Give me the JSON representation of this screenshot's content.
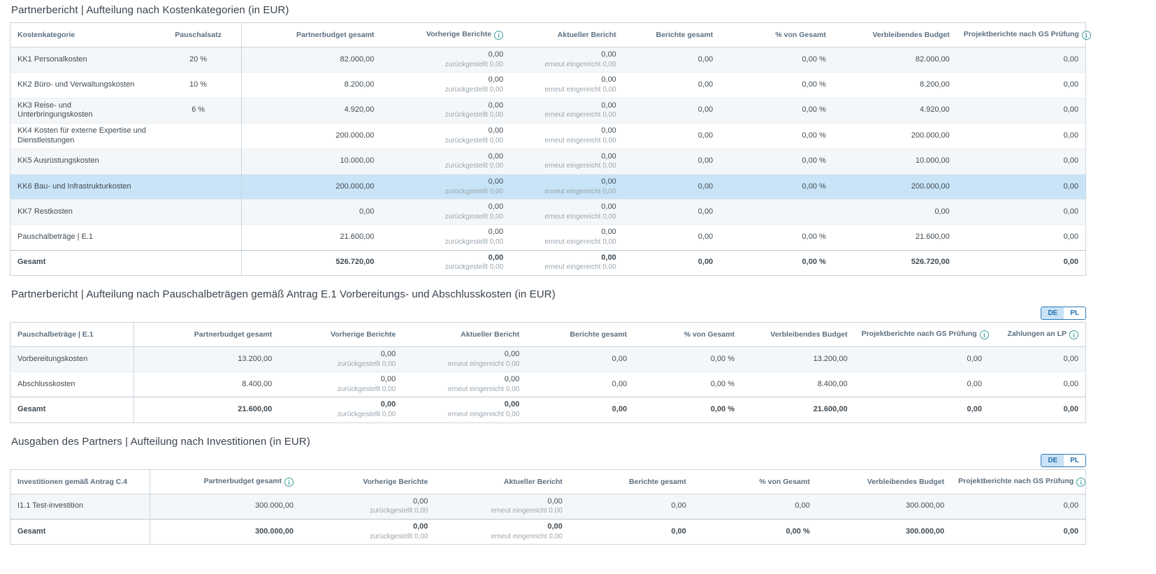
{
  "colors": {
    "accent_blue": "#2a79b8",
    "toggle_active_bg": "#c9e2f7",
    "highlight_row": "#c8e4f6",
    "stripe_row": "#f4f7fa",
    "info_icon_teal": "#3d9d9d",
    "header_text": "#5b6f80",
    "title_text": "#39434e"
  },
  "tables": [
    {
      "title": "Partnerbericht | Aufteilung nach Kostenkategorien (in EUR)",
      "toggle": null,
      "columns": [
        {
          "label": "Kostenkategorie",
          "align": "left",
          "info": false,
          "sep": false,
          "width": "13.5%"
        },
        {
          "label": "Pauschalsatz",
          "align": "center",
          "info": false,
          "sep": false,
          "width": "8%"
        },
        {
          "label": "Partnerbudget gesamt",
          "align": "right",
          "info": false,
          "sep": true,
          "width": "13%"
        },
        {
          "label": "Vorherige Berichte",
          "align": "right",
          "info": true,
          "sep": false,
          "width": "12%"
        },
        {
          "label": "Aktueller Bericht",
          "align": "right",
          "info": false,
          "sep": false,
          "width": "10.5%"
        },
        {
          "label": "Berichte gesamt",
          "align": "right",
          "info": false,
          "sep": false,
          "width": "9%"
        },
        {
          "label": "% von Gesamt",
          "align": "right",
          "info": false,
          "sep": false,
          "width": "10.5%"
        },
        {
          "label": "Verbleibendes Budget",
          "align": "right",
          "info": false,
          "sep": false,
          "width": "11.5%"
        },
        {
          "label": "Projektberichte nach GS Prüfung",
          "align": "right",
          "info": true,
          "sep": false,
          "width": "12%"
        }
      ],
      "rows": [
        {
          "highlight": false,
          "total": false,
          "cells": [
            "KK1 Personalkosten",
            "20 %",
            "82.000,00",
            {
              "main": "0,00",
              "sub": "zurückgestellt 0,00"
            },
            {
              "main": "0,00",
              "sub": "erneut eingereicht 0,00"
            },
            "0,00",
            "0,00 %",
            "82.000,00",
            "0,00"
          ]
        },
        {
          "highlight": false,
          "total": false,
          "cells": [
            "KK2 Büro- und Verwaltungskosten",
            "10 %",
            "8.200,00",
            {
              "main": "0,00",
              "sub": "zurückgestellt 0,00"
            },
            {
              "main": "0,00",
              "sub": "erneut eingereicht 0,00"
            },
            "0,00",
            "0,00 %",
            "8.200,00",
            "0,00"
          ]
        },
        {
          "highlight": false,
          "total": false,
          "cells": [
            "KK3 Reise- und Unterbringungskosten",
            "6 %",
            "4.920,00",
            {
              "main": "0,00",
              "sub": "zurückgestellt 0,00"
            },
            {
              "main": "0,00",
              "sub": "erneut eingereicht 0,00"
            },
            "0,00",
            "0,00 %",
            "4.920,00",
            "0,00"
          ]
        },
        {
          "highlight": false,
          "total": false,
          "cells": [
            "KK4 Kosten für externe Expertise und Dienstleistungen",
            "",
            "200.000,00",
            {
              "main": "0,00",
              "sub": "zurückgestellt 0,00"
            },
            {
              "main": "0,00",
              "sub": "erneut eingereicht 0,00"
            },
            "0,00",
            "0,00 %",
            "200.000,00",
            "0,00"
          ]
        },
        {
          "highlight": false,
          "total": false,
          "cells": [
            "KK5 Ausrüstungskosten",
            "",
            "10.000,00",
            {
              "main": "0,00",
              "sub": "zurückgestellt 0,00"
            },
            {
              "main": "0,00",
              "sub": "erneut eingereicht 0,00"
            },
            "0,00",
            "0,00 %",
            "10.000,00",
            "0,00"
          ]
        },
        {
          "highlight": true,
          "total": false,
          "cells": [
            "KK6 Bau- und Infrastrukturkosten",
            "",
            "200.000,00",
            {
              "main": "0,00",
              "sub": "zurückgestellt 0,00"
            },
            {
              "main": "0,00",
              "sub": "erneut eingereicht 0,00"
            },
            "0,00",
            "0,00 %",
            "200.000,00",
            "0,00"
          ]
        },
        {
          "highlight": false,
          "total": false,
          "cells": [
            "KK7 Restkosten",
            "",
            "0,00",
            {
              "main": "0,00",
              "sub": "zurückgestellt 0,00"
            },
            {
              "main": "0,00",
              "sub": "erneut eingereicht 0,00"
            },
            "0,00",
            "",
            "0,00",
            "0,00"
          ]
        },
        {
          "highlight": false,
          "total": false,
          "cells": [
            "Pauschalbeträge | E.1",
            "",
            "21.600,00",
            {
              "main": "0,00",
              "sub": "zurückgestellt 0,00"
            },
            {
              "main": "0,00",
              "sub": "erneut eingereicht 0,00"
            },
            "0,00",
            "0,00 %",
            "21.600,00",
            "0,00"
          ]
        },
        {
          "highlight": false,
          "total": true,
          "cells": [
            "Gesamt",
            "",
            "526.720,00",
            {
              "main": "0,00",
              "sub": "zurückgestellt 0,00"
            },
            {
              "main": "0,00",
              "sub": "erneut eingereicht 0,00"
            },
            "0,00",
            "0,00 %",
            "526.720,00",
            "0,00"
          ]
        }
      ]
    },
    {
      "title": "Partnerbericht | Aufteilung nach Pauschalbeträgen gemäß Antrag E.1 Vorbereitungs- und Abschlusskosten (in EUR)",
      "toggle": {
        "de": "DE",
        "pl": "PL",
        "active": "DE"
      },
      "columns": [
        {
          "label": "Pauschalbeträge | E.1",
          "align": "left",
          "info": false,
          "sep": false,
          "width": "11.5%"
        },
        {
          "label": "Partnerbudget gesamt",
          "align": "right",
          "info": false,
          "sep": true,
          "width": "13.5%"
        },
        {
          "label": "Vorherige Berichte",
          "align": "right",
          "info": false,
          "sep": false,
          "width": "11.5%"
        },
        {
          "label": "Aktueller Bericht",
          "align": "right",
          "info": false,
          "sep": false,
          "width": "11.5%"
        },
        {
          "label": "Berichte gesamt",
          "align": "right",
          "info": false,
          "sep": false,
          "width": "10%"
        },
        {
          "label": "% von Gesamt",
          "align": "right",
          "info": false,
          "sep": false,
          "width": "10%"
        },
        {
          "label": "Verbleibendes Budget",
          "align": "right",
          "info": false,
          "sep": false,
          "width": "10.5%"
        },
        {
          "label": "Projektberichte nach GS Prüfung",
          "align": "right",
          "info": true,
          "sep": false,
          "width": "12.5%"
        },
        {
          "label": "Zahlungen an LP",
          "align": "right",
          "info": true,
          "sep": false,
          "width": "9%"
        }
      ],
      "rows": [
        {
          "highlight": false,
          "total": false,
          "cells": [
            "Vorbereitungskosten",
            "13.200,00",
            {
              "main": "0,00",
              "sub": "zurückgestellt 0,00"
            },
            {
              "main": "0,00",
              "sub": "erneut eingereicht 0,00"
            },
            "0,00",
            "0,00 %",
            "13.200,00",
            "0,00",
            "0,00"
          ]
        },
        {
          "highlight": false,
          "total": false,
          "cells": [
            "Abschlusskosten",
            "8.400,00",
            {
              "main": "0,00",
              "sub": "zurückgestellt 0,00"
            },
            {
              "main": "0,00",
              "sub": "erneut eingereicht 0,00"
            },
            "0,00",
            "0,00 %",
            "8.400,00",
            "0,00",
            "0,00"
          ]
        },
        {
          "highlight": false,
          "total": true,
          "cells": [
            "Gesamt",
            "21.600,00",
            {
              "main": "0,00",
              "sub": "zurückgestellt 0,00"
            },
            {
              "main": "0,00",
              "sub": "erneut eingereicht 0,00"
            },
            "0,00",
            "0,00 %",
            "21.600,00",
            "0,00",
            "0,00"
          ]
        }
      ]
    },
    {
      "title": "Ausgaben des Partners | Aufteilung nach Investitionen (in EUR)",
      "toggle": {
        "de": "DE",
        "pl": "PL",
        "active": "DE"
      },
      "columns": [
        {
          "label": "Investitionen gemäß Antrag C.4",
          "align": "left",
          "info": false,
          "sep": false,
          "width": "13%"
        },
        {
          "label": "Partnerbudget gesamt",
          "align": "right",
          "info": true,
          "sep": true,
          "width": "14%"
        },
        {
          "label": "Vorherige Berichte",
          "align": "right",
          "info": false,
          "sep": false,
          "width": "12.5%"
        },
        {
          "label": "Aktueller Bericht",
          "align": "right",
          "info": false,
          "sep": false,
          "width": "12.5%"
        },
        {
          "label": "Berichte gesamt",
          "align": "right",
          "info": false,
          "sep": false,
          "width": "11.5%"
        },
        {
          "label": "% von Gesamt",
          "align": "right",
          "info": false,
          "sep": false,
          "width": "11.5%"
        },
        {
          "label": "Verbleibendes Budget",
          "align": "right",
          "info": false,
          "sep": false,
          "width": "12.5%"
        },
        {
          "label": "Projektberichte nach GS Prüfung",
          "align": "right",
          "info": true,
          "sep": false,
          "width": "12.5%"
        }
      ],
      "rows": [
        {
          "highlight": false,
          "total": false,
          "cells": [
            "I1.1 Test-investition",
            "300.000,00",
            {
              "main": "0,00",
              "sub": "zurückgestellt 0,00"
            },
            {
              "main": "0,00",
              "sub": "erneut eingereicht 0,00"
            },
            "0,00",
            "0,00",
            "300.000,00",
            "0,00"
          ]
        },
        {
          "highlight": false,
          "total": true,
          "cells": [
            "Gesamt",
            "300.000,00",
            {
              "main": "0,00",
              "sub": "zurückgestellt 0,00"
            },
            {
              "main": "0,00",
              "sub": "erneut eingereicht 0,00"
            },
            "0,00",
            "0,00 %",
            "300.000,00",
            "0,00"
          ]
        }
      ]
    }
  ]
}
